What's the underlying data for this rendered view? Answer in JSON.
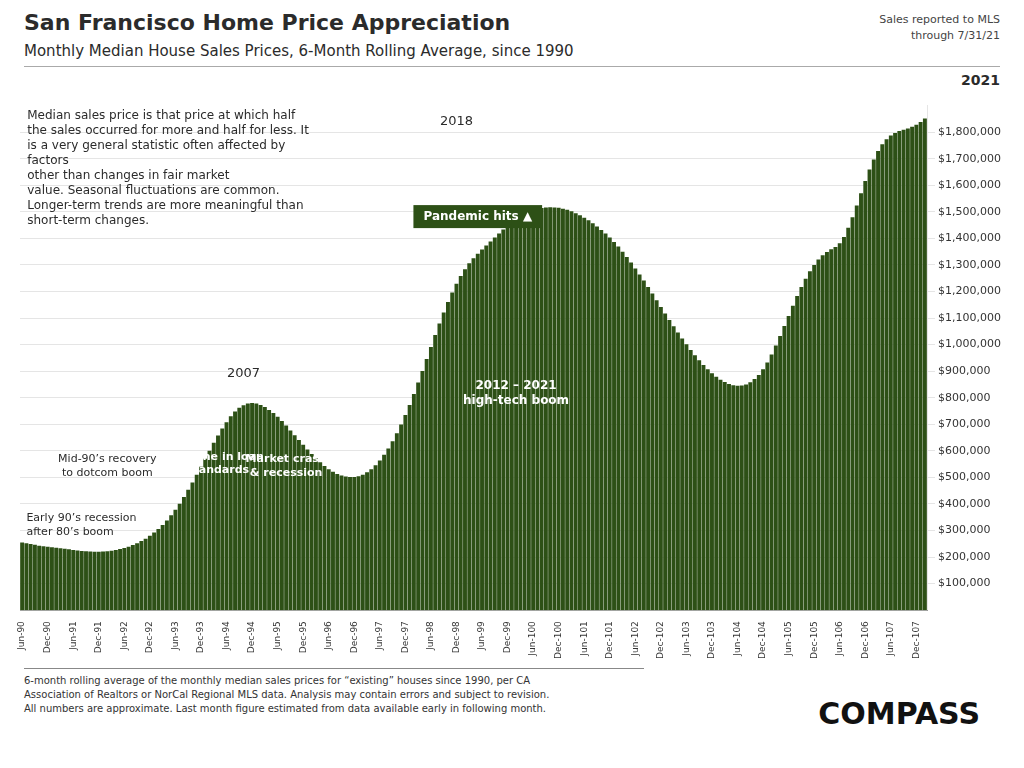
{
  "chart_data": {
    "type": "bar",
    "title": "San Francisco Home Price Appreciation",
    "subtitle": "Monthly Median House Sales Prices, 6-Month Rolling Average, since 1990",
    "annotations": [
      "Sales reported to MLS",
      "through 7/31/21",
      "2021",
      "Median sales price is that price at which half\nthe sales occurred for more and half for less. It\nis a very general statistic often affected by\nfactors\nother than changes in fair market\nvalue. Seasonal fluctuations are common.\nLonger-term trends are more meaningful than\nshort-term changes.",
      "Early 90’s recession\nafter 80’s boom",
      "Mid-90’s recovery\nto dotcom boom",
      "2007",
      "Decline in loan\nstandards",
      "Market crash\n& recession",
      "2018",
      "2012 – 2021\nhigh-tech boom",
      "Pandemic hits ▲",
      "6-month rolling average of the monthly median sales prices for “existing” houses since 1990, per CA\nAssociation of Realtors or NorCal Regional MLS data.  Analysis may contain errors and subject to revision.\nAll numbers are approximate. Last month figure estimated from data available early in following month.",
      "COMPASS"
    ],
    "color": "#2d5016",
    "grid": true,
    "ylim": [
      0,
      1900000
    ],
    "yticks": [
      {
        "value": 100000,
        "label": "$100,000"
      },
      {
        "value": 200000,
        "label": "$200,000"
      },
      {
        "value": 300000,
        "label": "$300,000"
      },
      {
        "value": 400000,
        "label": "$400,000"
      },
      {
        "value": 500000,
        "label": "$500,000"
      },
      {
        "value": 600000,
        "label": "$600,000"
      },
      {
        "value": 700000,
        "label": "$700,000"
      },
      {
        "value": 800000,
        "label": "$800,000"
      },
      {
        "value": 900000,
        "label": "$900,000"
      },
      {
        "value": 1000000,
        "label": "$1,000,000"
      },
      {
        "value": 1100000,
        "label": "$1,100,000"
      },
      {
        "value": 1200000,
        "label": "$1,200,000"
      },
      {
        "value": 1300000,
        "label": "$1,300,000"
      },
      {
        "value": 1400000,
        "label": "$1,400,000"
      },
      {
        "value": 1500000,
        "label": "$1,500,000"
      },
      {
        "value": 1600000,
        "label": "$1,600,000"
      },
      {
        "value": 1700000,
        "label": "$1,700,000"
      },
      {
        "value": 1800000,
        "label": "$1,800,000"
      }
    ],
    "categories": [
      "Jun-90",
      null,
      null,
      null,
      null,
      null,
      "Dec-90",
      null,
      null,
      null,
      null,
      null,
      "Jun-91",
      null,
      null,
      null,
      null,
      null,
      "Dec-91",
      null,
      null,
      null,
      null,
      null,
      "Jun-92",
      null,
      null,
      null,
      null,
      null,
      "Dec-92",
      null,
      null,
      null,
      null,
      null,
      "Jun-93",
      null,
      null,
      null,
      null,
      null,
      "Dec-93",
      null,
      null,
      null,
      null,
      null,
      "Jun-94",
      null,
      null,
      null,
      null,
      null,
      "Dec-94",
      null,
      null,
      null,
      null,
      null,
      "Jun-95",
      null,
      null,
      null,
      null,
      null,
      "Dec-95",
      null,
      null,
      null,
      null,
      null,
      "Jun-96",
      null,
      null,
      null,
      null,
      null,
      "Dec-96",
      null,
      null,
      null,
      null,
      null,
      "Jun-97",
      null,
      null,
      null,
      null,
      null,
      "Dec-97",
      null,
      null,
      null,
      null,
      null,
      "Jun-98",
      null,
      null,
      null,
      null,
      null,
      "Dec-98",
      null,
      null,
      null,
      null,
      null,
      "Jun-99",
      null,
      null,
      null,
      null,
      null,
      "Dec-99",
      null,
      null,
      null,
      null,
      null,
      "Jun-100",
      null,
      null,
      null,
      null,
      null,
      "Dec-100",
      null,
      null,
      null,
      null,
      null,
      "Jun-101",
      null,
      null,
      null,
      null,
      null,
      "Dec-101",
      null,
      null,
      null,
      null,
      null,
      "Jun-102",
      null,
      null,
      null,
      null,
      null,
      "Dec-102",
      null,
      null,
      null,
      null,
      null,
      "Jun-103",
      null,
      null,
      null,
      null,
      null,
      "Dec-103",
      null,
      null,
      null,
      null,
      null,
      "Jun-104",
      null,
      null,
      null,
      null,
      null,
      "Dec-104",
      null,
      null,
      null,
      null,
      null,
      "Jun-105",
      null,
      null,
      null,
      null,
      null,
      "Dec-105",
      null,
      null,
      null,
      null,
      null,
      "Jun-106",
      null,
      null,
      null,
      null,
      null,
      "Dec-106",
      null,
      null,
      null,
      null,
      null,
      "Jun-107",
      null,
      null,
      null,
      null,
      null,
      "Dec-107",
      null,
      null
    ],
    "values": [
      255000,
      252000,
      249000,
      246000,
      243000,
      241000,
      239000,
      237000,
      235000,
      233000,
      231000,
      229000,
      227000,
      225000,
      223000,
      222000,
      221000,
      220000,
      220000,
      221000,
      222000,
      224000,
      227000,
      230000,
      234000,
      239000,
      245000,
      252000,
      260000,
      269000,
      280000,
      292000,
      306000,
      321000,
      338000,
      357000,
      378000,
      401000,
      426000,
      453000,
      481000,
      510000,
      540000,
      570000,
      600000,
      630000,
      658000,
      684000,
      708000,
      730000,
      748000,
      762000,
      772000,
      778000,
      780000,
      778000,
      773000,
      765000,
      754000,
      742000,
      728000,
      712000,
      695000,
      677000,
      659000,
      641000,
      623000,
      605000,
      588000,
      572000,
      557000,
      543000,
      531000,
      521000,
      513000,
      507000,
      503000,
      501000,
      501000,
      504000,
      510000,
      519000,
      531000,
      546000,
      564000,
      585000,
      609000,
      636000,
      666000,
      699000,
      735000,
      773000,
      814000,
      857000,
      901000,
      946000,
      991000,
      1036000,
      1079000,
      1121000,
      1160000,
      1196000,
      1229000,
      1258000,
      1284000,
      1306000,
      1325000,
      1342000,
      1358000,
      1373000,
      1388000,
      1403000,
      1418000,
      1433000,
      1447000,
      1460000,
      1472000,
      1483000,
      1492000,
      1500000,
      1506000,
      1511000,
      1514000,
      1516000,
      1517000,
      1516000,
      1515000,
      1512000,
      1508000,
      1502000,
      1495000,
      1487000,
      1478000,
      1468000,
      1457000,
      1445000,
      1432000,
      1418000,
      1403000,
      1386000,
      1369000,
      1350000,
      1330000,
      1309000,
      1287000,
      1264000,
      1241000,
      1217000,
      1192000,
      1167000,
      1142000,
      1117000,
      1093000,
      1069000,
      1046000,
      1023000,
      1001000,
      980000,
      960000,
      941000,
      923000,
      907000,
      892000,
      879000,
      868000,
      859000,
      852000,
      847000,
      845000,
      846000,
      850000,
      858000,
      870000,
      886000,
      907000,
      933000,
      963000,
      997000,
      1032000,
      1070000,
      1108000,
      1146000,
      1183000,
      1217000,
      1248000,
      1276000,
      1300000,
      1320000,
      1336000,
      1349000,
      1359000,
      1368000,
      1382000,
      1405000,
      1440000,
      1480000,
      1524000,
      1570000,
      1616000,
      1659000,
      1697000,
      1729000,
      1754000,
      1773000,
      1787000,
      1797000,
      1804000,
      1809000,
      1814000,
      1820000,
      1828000,
      1838000,
      1851000
    ]
  }
}
